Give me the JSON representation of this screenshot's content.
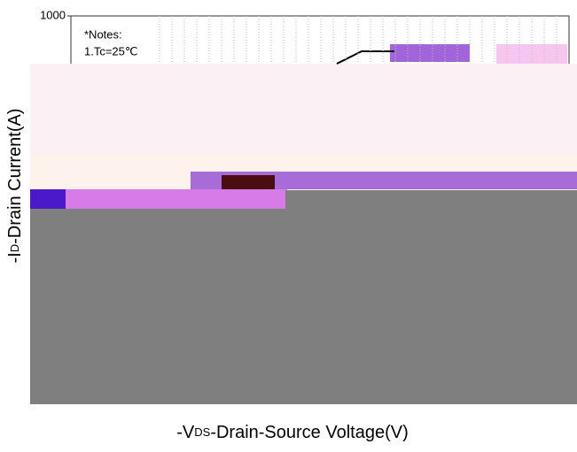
{
  "chart_data": {
    "type": "line",
    "log_scale": true,
    "yticks": [
      1000
    ],
    "notes": [
      "*Notes:",
      "1.Tc=25℃"
    ],
    "ylabel": {
      "prefix": "-I",
      "sub": "D",
      "rest": "-Drain Current(A)"
    },
    "xlabel": {
      "prefix": "-V",
      "sub": "DS",
      "rest": "-Drain-Source Voltage(V)"
    },
    "grid": true
  }
}
